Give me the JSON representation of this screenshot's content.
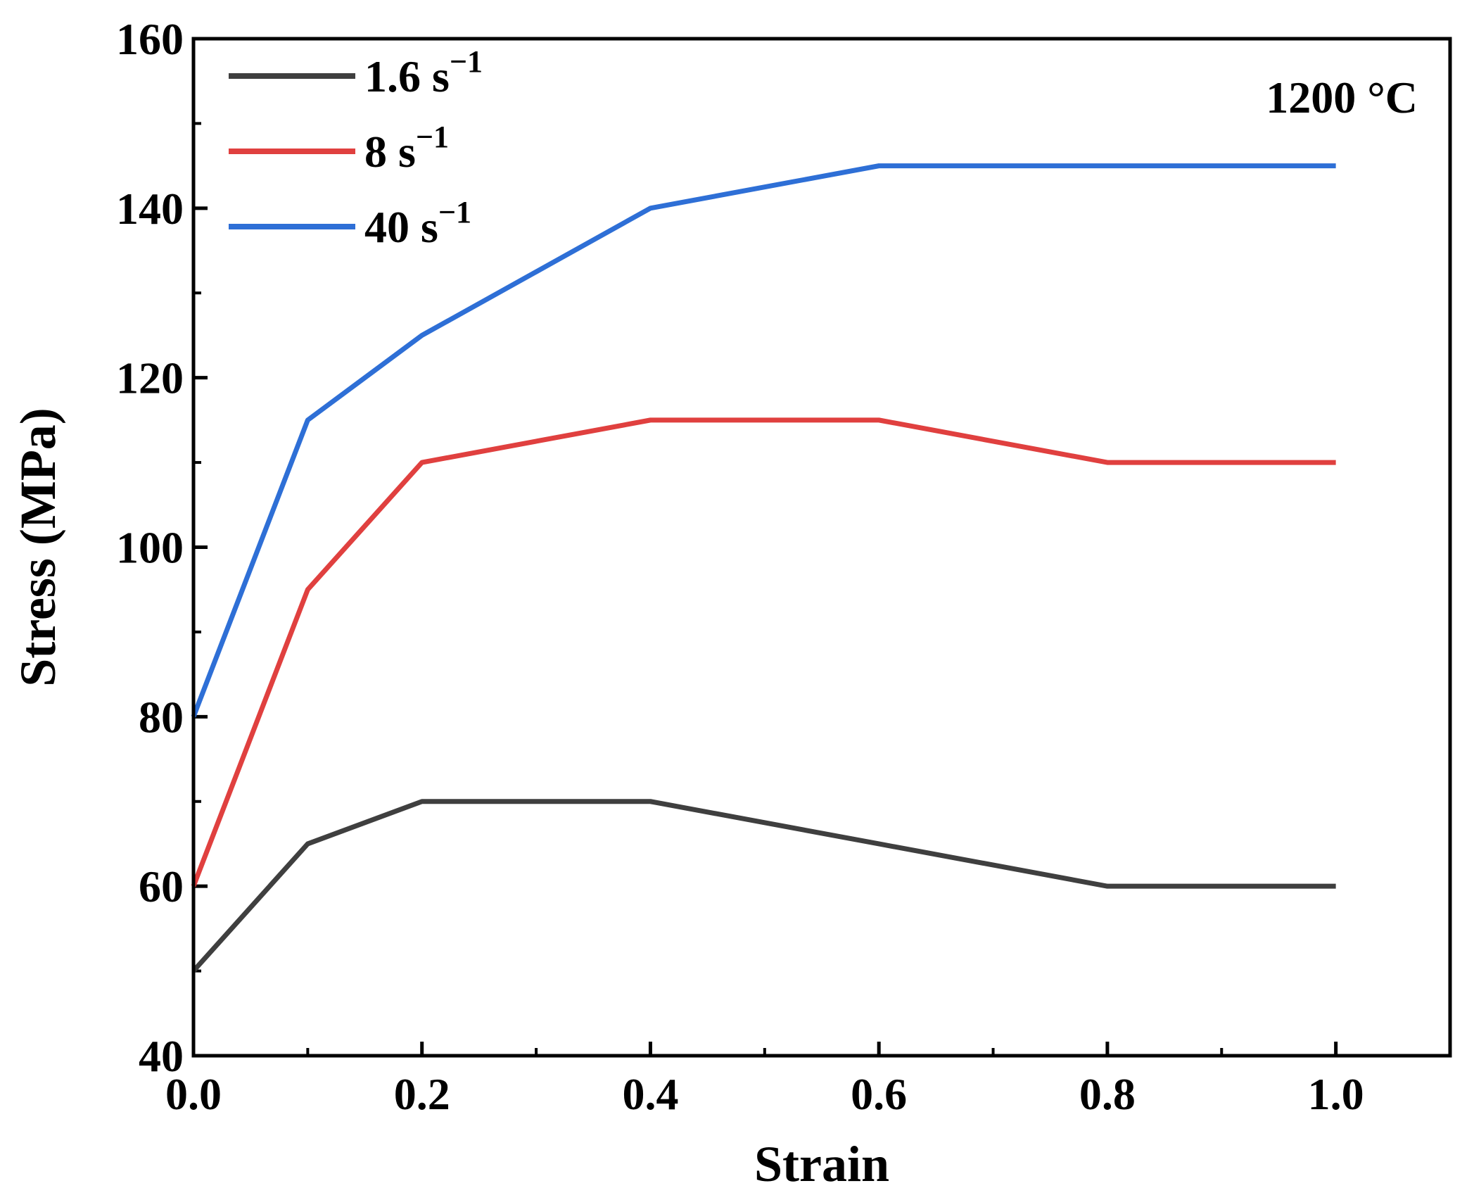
{
  "chart_data": {
    "type": "line",
    "xlabel": "Strain",
    "ylabel": "Stress (MPa)",
    "xlim": [
      0.0,
      1.1
    ],
    "ylim": [
      40,
      160
    ],
    "xticks": [
      0.0,
      0.2,
      0.4,
      0.6,
      0.8,
      1.0
    ],
    "xtick_labels": [
      "0.0",
      "0.2",
      "0.4",
      "0.6",
      "0.8",
      "1.0"
    ],
    "x_minor_ticks": [
      0.1,
      0.3,
      0.5,
      0.7,
      0.9,
      1.1
    ],
    "yticks": [
      40,
      60,
      80,
      100,
      120,
      140,
      160
    ],
    "ytick_labels": [
      "40",
      "60",
      "80",
      "100",
      "120",
      "140",
      "160"
    ],
    "y_minor_ticks": [
      50,
      70,
      90,
      110,
      130,
      150
    ],
    "grid": false,
    "legend_position": "top-left",
    "annotation": "1200 °C",
    "series": [
      {
        "name": "1.6 s−1",
        "label_main": "1.6 s",
        "label_sup": "−1",
        "color": "#3f3f3f",
        "x": [
          0.0,
          0.1,
          0.2,
          0.4,
          0.6,
          0.8,
          1.0
        ],
        "y": [
          50,
          65,
          70,
          70,
          65,
          60,
          60
        ]
      },
      {
        "name": "8 s−1",
        "label_main": "8 s",
        "label_sup": "−1",
        "color": "#e0403f",
        "x": [
          0.0,
          0.1,
          0.2,
          0.4,
          0.6,
          0.8,
          1.0
        ],
        "y": [
          60,
          95,
          110,
          115,
          115,
          110,
          110
        ]
      },
      {
        "name": "40 s−1",
        "label_main": "40 s",
        "label_sup": "−1",
        "color": "#2e6fd6",
        "x": [
          0.0,
          0.1,
          0.2,
          0.4,
          0.6,
          0.8,
          1.0
        ],
        "y": [
          80,
          115,
          125,
          140,
          145,
          145,
          145
        ]
      }
    ]
  }
}
